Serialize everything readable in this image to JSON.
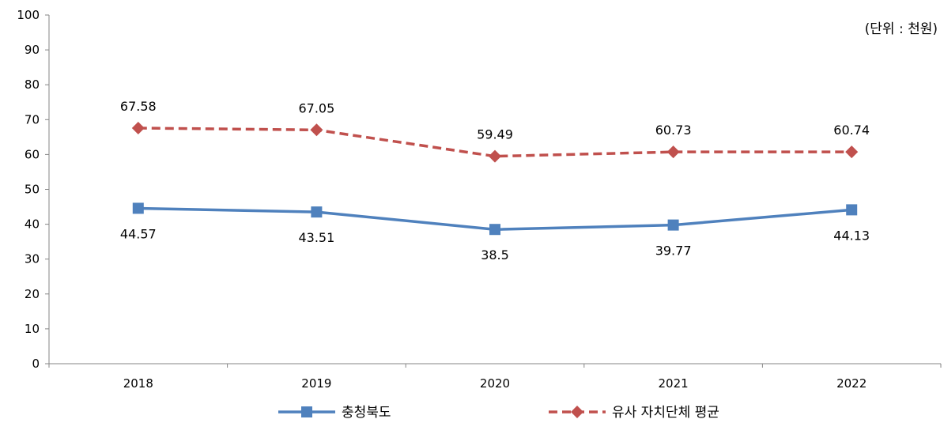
{
  "chart_data": {
    "type": "line",
    "unit_note": "(단위 : 천원)",
    "categories": [
      "2018",
      "2019",
      "2020",
      "2021",
      "2022"
    ],
    "ylim": [
      0,
      100
    ],
    "yticks": [
      0,
      10,
      20,
      30,
      40,
      50,
      60,
      70,
      80,
      90,
      100
    ],
    "grid": false,
    "legend_position": "bottom",
    "series": [
      {
        "name": "충청북도",
        "values": [
          44.57,
          43.51,
          38.5,
          39.77,
          44.13
        ],
        "labels": [
          "44.57",
          "43.51",
          "38.5",
          "39.77",
          "44.13"
        ],
        "color": "#4f81bd",
        "line_style": "solid",
        "marker": "square",
        "label_position": "below"
      },
      {
        "name": "유사 자치단체 평균",
        "values": [
          67.58,
          67.05,
          59.49,
          60.73,
          60.74
        ],
        "labels": [
          "67.58",
          "67.05",
          "59.49",
          "60.73",
          "60.74"
        ],
        "color": "#c0504d",
        "line_style": "dashed",
        "marker": "diamond",
        "label_position": "above"
      }
    ]
  }
}
